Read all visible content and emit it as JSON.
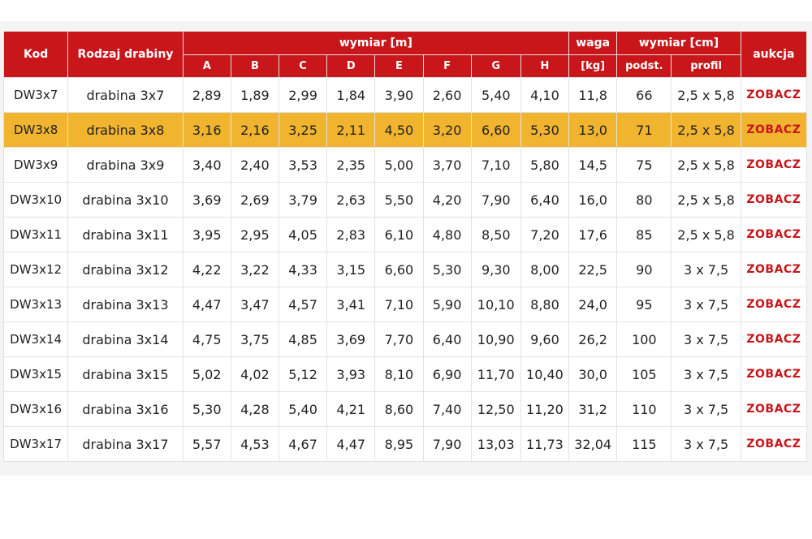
{
  "table": {
    "headers": {
      "kod": "Kod",
      "rodzaj": "Rodzaj drabiny",
      "wymiar_m": "wymiar [m]",
      "waga": "waga",
      "waga_unit": "[kg]",
      "wymiar_cm": "wymiar [cm]",
      "aukcja": "aukcja",
      "sub": [
        "A",
        "B",
        "C",
        "D",
        "E",
        "F",
        "G",
        "H"
      ],
      "podst": "podst.",
      "profil": "profil"
    },
    "highlight_color": "#f0b42f",
    "header_color": "#c8161b",
    "rows": [
      {
        "kod": "DW3x7",
        "rodzaj": "drabina 3x7",
        "a": "2,89",
        "b": "1,89",
        "c": "2,99",
        "d": "1,84",
        "e": "3,90",
        "f": "2,60",
        "g": "5,40",
        "h": "4,10",
        "waga": "11,8",
        "podst": "66",
        "profil": "2,5 x 5,8",
        "link": "ZOBACZ"
      },
      {
        "kod": "DW3x8",
        "rodzaj": "drabina 3x8",
        "a": "3,16",
        "b": "2,16",
        "c": "3,25",
        "d": "2,11",
        "e": "4,50",
        "f": "3,20",
        "g": "6,60",
        "h": "5,30",
        "waga": "13,0",
        "podst": "71",
        "profil": "2,5 x 5,8",
        "link": "ZOBACZ",
        "highlighted": true
      },
      {
        "kod": "DW3x9",
        "rodzaj": "drabina 3x9",
        "a": "3,40",
        "b": "2,40",
        "c": "3,53",
        "d": "2,35",
        "e": "5,00",
        "f": "3,70",
        "g": "7,10",
        "h": "5,80",
        "waga": "14,5",
        "podst": "75",
        "profil": "2,5 x 5,8",
        "link": "ZOBACZ"
      },
      {
        "kod": "DW3x10",
        "rodzaj": "drabina 3x10",
        "a": "3,69",
        "b": "2,69",
        "c": "3,79",
        "d": "2,63",
        "e": "5,50",
        "f": "4,20",
        "g": "7,90",
        "h": "6,40",
        "waga": "16,0",
        "podst": "80",
        "profil": "2,5 x 5,8",
        "link": "ZOBACZ"
      },
      {
        "kod": "DW3x11",
        "rodzaj": "drabina 3x11",
        "a": "3,95",
        "b": "2,95",
        "c": "4,05",
        "d": "2,83",
        "e": "6,10",
        "f": "4,80",
        "g": "8,50",
        "h": "7,20",
        "waga": "17,6",
        "podst": "85",
        "profil": "2,5 x 5,8",
        "link": "ZOBACZ"
      },
      {
        "kod": "DW3x12",
        "rodzaj": "drabina 3x12",
        "a": "4,22",
        "b": "3,22",
        "c": "4,33",
        "d": "3,15",
        "e": "6,60",
        "f": "5,30",
        "g": "9,30",
        "h": "8,00",
        "waga": "22,5",
        "podst": "90",
        "profil": "3 x 7,5",
        "link": "ZOBACZ"
      },
      {
        "kod": "DW3x13",
        "rodzaj": "drabina 3x13",
        "a": "4,47",
        "b": "3,47",
        "c": "4,57",
        "d": "3,41",
        "e": "7,10",
        "f": "5,90",
        "g": "10,10",
        "h": "8,80",
        "waga": "24,0",
        "podst": "95",
        "profil": "3 x 7,5",
        "link": "ZOBACZ"
      },
      {
        "kod": "DW3x14",
        "rodzaj": "drabina 3x14",
        "a": "4,75",
        "b": "3,75",
        "c": "4,85",
        "d": "3,69",
        "e": "7,70",
        "f": "6,40",
        "g": "10,90",
        "h": "9,60",
        "waga": "26,2",
        "podst": "100",
        "profil": "3 x 7,5",
        "link": "ZOBACZ"
      },
      {
        "kod": "DW3x15",
        "rodzaj": "drabina 3x15",
        "a": "5,02",
        "b": "4,02",
        "c": "5,12",
        "d": "3,93",
        "e": "8,10",
        "f": "6,90",
        "g": "11,70",
        "h": "10,40",
        "waga": "30,0",
        "podst": "105",
        "profil": "3 x 7,5",
        "link": "ZOBACZ"
      },
      {
        "kod": "DW3x16",
        "rodzaj": "drabina 3x16",
        "a": "5,30",
        "b": "4,28",
        "c": "5,40",
        "d": "4,21",
        "e": "8,60",
        "f": "7,40",
        "g": "12,50",
        "h": "11,20",
        "waga": "31,2",
        "podst": "110",
        "profil": "3 x 7,5",
        "link": "ZOBACZ"
      },
      {
        "kod": "DW3x17",
        "rodzaj": "drabina 3x17",
        "a": "5,57",
        "b": "4,53",
        "c": "4,67",
        "d": "4,47",
        "e": "8,95",
        "f": "7,90",
        "g": "13,03",
        "h": "11,73",
        "waga": "32,04",
        "podst": "115",
        "profil": "3 x 7,5",
        "link": "ZOBACZ"
      }
    ]
  }
}
